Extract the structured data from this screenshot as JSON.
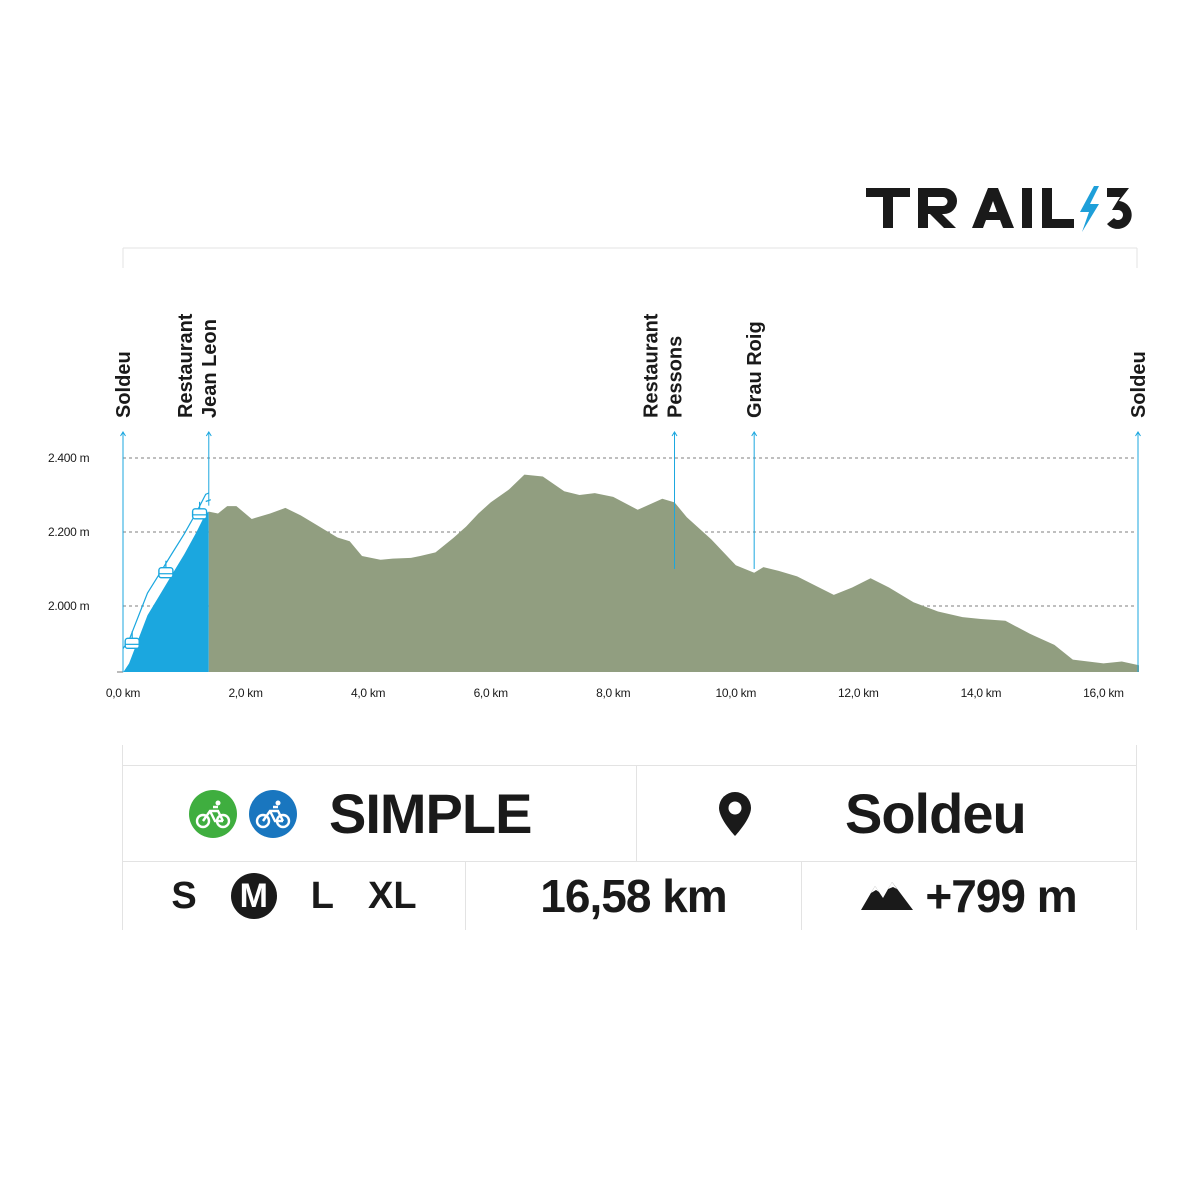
{
  "brand": {
    "logo_text": "TRAIL 3",
    "bolt_color": "#1e9fd9"
  },
  "chart_data": {
    "type": "area",
    "xlabel": "",
    "ylabel": "",
    "xlim": [
      0,
      16.58
    ],
    "ylim": [
      1820,
      2400
    ],
    "x_ticks": [
      0,
      2,
      4,
      6,
      8,
      10,
      12,
      14,
      16
    ],
    "x_tick_labels": [
      "0,0 km",
      "2,0 km",
      "4,0 km",
      "6,0 km",
      "8,0 km",
      "10,0 km",
      "12,0 km",
      "14,0 km",
      "16,0 km"
    ],
    "y_ticks": [
      2000,
      2200,
      2400
    ],
    "y_tick_labels": [
      "2.000 m",
      "2.200 m",
      "2.400 m"
    ],
    "grid": "dashed horizontal",
    "series": [
      {
        "segment": "lift",
        "color": "#1ba7df",
        "x": [
          0,
          0.1,
          0.25,
          0.4,
          0.6,
          0.8,
          1.0,
          1.2,
          1.35,
          1.4
        ],
        "y": [
          1820,
          1845,
          1910,
          1975,
          2030,
          2085,
          2140,
          2200,
          2250,
          2255
        ]
      },
      {
        "segment": "trail",
        "color": "#919e80",
        "x": [
          1.4,
          1.55,
          1.7,
          1.85,
          2.1,
          2.4,
          2.65,
          2.9,
          3.1,
          3.3,
          3.5,
          3.7,
          3.9,
          4.05,
          4.2,
          4.4,
          4.7,
          4.85,
          5.1,
          5.4,
          5.6,
          5.8,
          6.0,
          6.3,
          6.55,
          6.85,
          7.2,
          7.45,
          7.7,
          8.0,
          8.4,
          8.8,
          9.0,
          9.2,
          9.6,
          10.0,
          10.3,
          10.45,
          10.7,
          11.0,
          11.3,
          11.6,
          11.9,
          12.2,
          12.5,
          12.9,
          13.3,
          13.7,
          14.0,
          14.4,
          14.8,
          15.2,
          15.5,
          16.0,
          16.3,
          16.58
        ],
        "y": [
          2255,
          2250,
          2270,
          2270,
          2235,
          2250,
          2265,
          2245,
          2225,
          2205,
          2185,
          2175,
          2135,
          2130,
          2125,
          2128,
          2130,
          2135,
          2145,
          2185,
          2215,
          2250,
          2280,
          2315,
          2355,
          2350,
          2310,
          2300,
          2305,
          2295,
          2260,
          2290,
          2280,
          2240,
          2180,
          2110,
          2090,
          2105,
          2095,
          2080,
          2055,
          2030,
          2050,
          2075,
          2050,
          2010,
          1985,
          1970,
          1965,
          1960,
          1925,
          1895,
          1855,
          1845,
          1850,
          1840
        ]
      }
    ],
    "annotations": [
      {
        "x": 0.0,
        "lines": [
          "Soldeu"
        ]
      },
      {
        "x": 1.4,
        "lines": [
          "Restaurant",
          "Jean Leon"
        ]
      },
      {
        "x": 9.0,
        "lines": [
          "Restaurant",
          "Pessons"
        ]
      },
      {
        "x": 10.3,
        "lines": [
          "Grau Roig"
        ]
      },
      {
        "x": 16.58,
        "lines": [
          "Soldeu"
        ]
      }
    ],
    "lift_gondola_positions_km": [
      0.15,
      0.7,
      1.25
    ]
  },
  "info": {
    "difficulty_label": "SIMPLE",
    "bike_badges": [
      {
        "icon": "bike-icon",
        "color": "#3fae3f"
      },
      {
        "icon": "ebike-icon",
        "color": "#1976bf"
      }
    ],
    "location_icon": "map-pin-icon",
    "location": "Soldeu",
    "sizes": [
      {
        "label": "S",
        "selected": false
      },
      {
        "label": "M",
        "selected": true
      },
      {
        "label": "L",
        "selected": false
      },
      {
        "label": "XL",
        "selected": false
      }
    ],
    "distance": "16,58 km",
    "elevation_icon": "mountain-icon",
    "elevation_gain": "+799 m"
  }
}
